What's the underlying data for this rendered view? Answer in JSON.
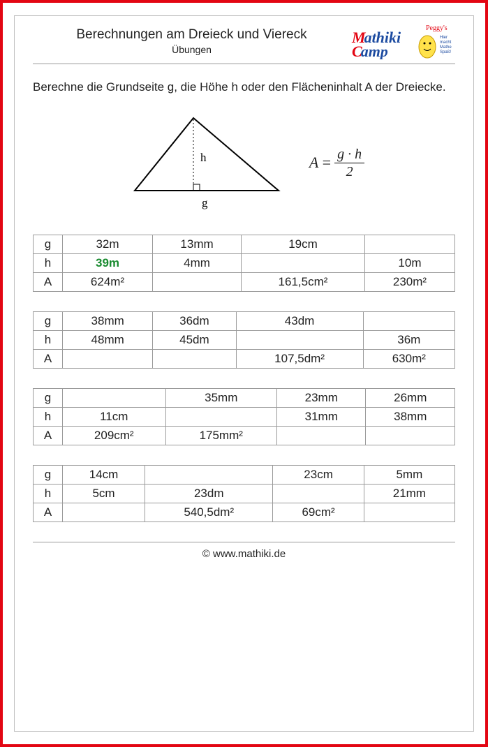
{
  "brand": {
    "owner": "Peggy's",
    "name_top": "Mathiki",
    "name_bottom": "Camp",
    "tagline1": "Hier",
    "tagline2": "macht",
    "tagline3": "Mathe",
    "tagline4": "Spaß!",
    "colors": {
      "red": "#e30613",
      "blue": "#1b4aa0",
      "yellow_stroke": "#c79a00",
      "yellow_fill": "#ffe24a",
      "green": "#178a2e",
      "border_gray": "#9a9a9a"
    }
  },
  "header": {
    "title": "Berechnungen am Dreieck und Viereck",
    "subtitle": "Übungen"
  },
  "instruction": "Berechne die Grundseite g, die Höhe h oder den Flächeninhalt A der Dreiecke.",
  "diagram": {
    "label_base": "g",
    "label_height": "h"
  },
  "formula": {
    "left": "A",
    "eq": "=",
    "numerator": "g · h",
    "denominator": "2"
  },
  "row_labels": [
    "g",
    "h",
    "A"
  ],
  "tables": [
    {
      "type": "table",
      "columns": 4,
      "rows": [
        [
          "32m",
          "13mm",
          "19cm",
          ""
        ],
        [
          {
            "text": "39m",
            "highlight": true
          },
          "4mm",
          "",
          "10m"
        ],
        [
          "624m²",
          "",
          "161,5cm²",
          "230m²"
        ]
      ]
    },
    {
      "type": "table",
      "columns": 4,
      "rows": [
        [
          "38mm",
          "36dm",
          "43dm",
          ""
        ],
        [
          "48mm",
          "45dm",
          "",
          "36m"
        ],
        [
          "",
          "",
          "107,5dm²",
          "630m²"
        ]
      ]
    },
    {
      "type": "table",
      "columns": 4,
      "rows": [
        [
          "",
          "35mm",
          "23mm",
          "26mm"
        ],
        [
          "11cm",
          "",
          "31mm",
          "38mm"
        ],
        [
          "209cm²",
          "175mm²",
          "",
          ""
        ]
      ]
    },
    {
      "type": "table",
      "columns": 4,
      "rows": [
        [
          "14cm",
          "",
          "23cm",
          "5mm"
        ],
        [
          "5cm",
          "23dm",
          "",
          "21mm"
        ],
        [
          "",
          "540,5dm²",
          "69cm²",
          ""
        ]
      ]
    }
  ],
  "footer": {
    "copyright": "©",
    "site": "www.mathiki.de"
  }
}
